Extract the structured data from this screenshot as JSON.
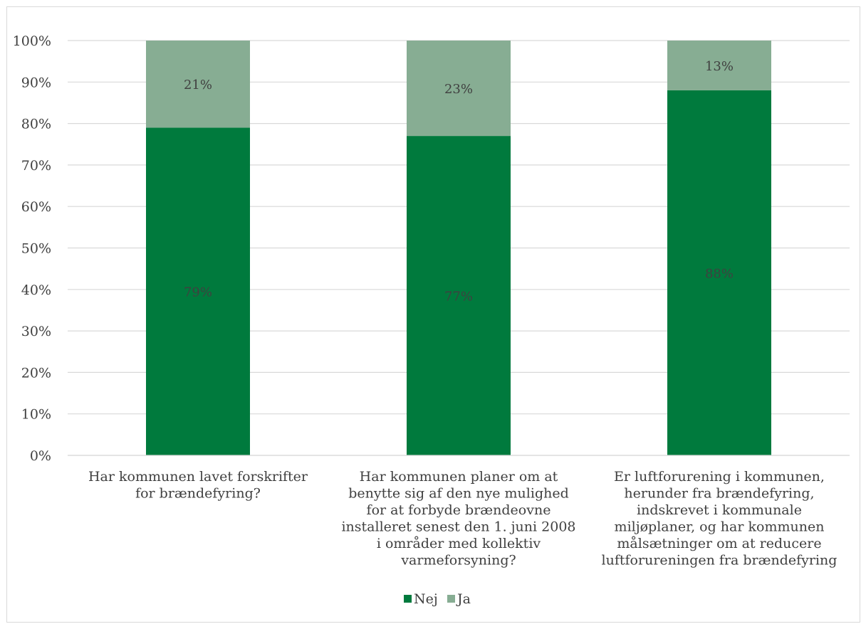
{
  "chart_data": {
    "type": "bar",
    "stacked": true,
    "percent_stacked": true,
    "categories": [
      [
        "Har kommunen lavet forskrifter",
        "for brændefyring?"
      ],
      [
        "Har kommunen planer om at",
        "benytte sig af den nye mulighed",
        "for at forbyde brændeovne",
        "installeret senest den 1. juni 2008",
        "i områder med kollektiv",
        "varmeforsyning?"
      ],
      [
        "Er luftforurening i kommunen,",
        "herunder fra brændefyring,",
        "indskrevet i kommunale",
        "miljøplaner, og har kommunen",
        "målsætninger om at reducere",
        "luftforureningen fra brændefyring"
      ]
    ],
    "series": [
      {
        "name": "Nej",
        "color": "#007a3d",
        "values": [
          79,
          77,
          88
        ],
        "labels": [
          "79%",
          "77%",
          "88%"
        ]
      },
      {
        "name": "Ja",
        "color": "#87ad93",
        "values": [
          21,
          23,
          13
        ],
        "labels": [
          "21%",
          "23%",
          "13%"
        ]
      }
    ],
    "ylim": [
      0,
      100
    ],
    "yticks": [
      "0%",
      "10%",
      "20%",
      "30%",
      "40%",
      "50%",
      "60%",
      "70%",
      "80%",
      "90%",
      "100%"
    ],
    "grid": true,
    "legend": "bottom",
    "title": "",
    "xlabel": "",
    "ylabel": ""
  }
}
